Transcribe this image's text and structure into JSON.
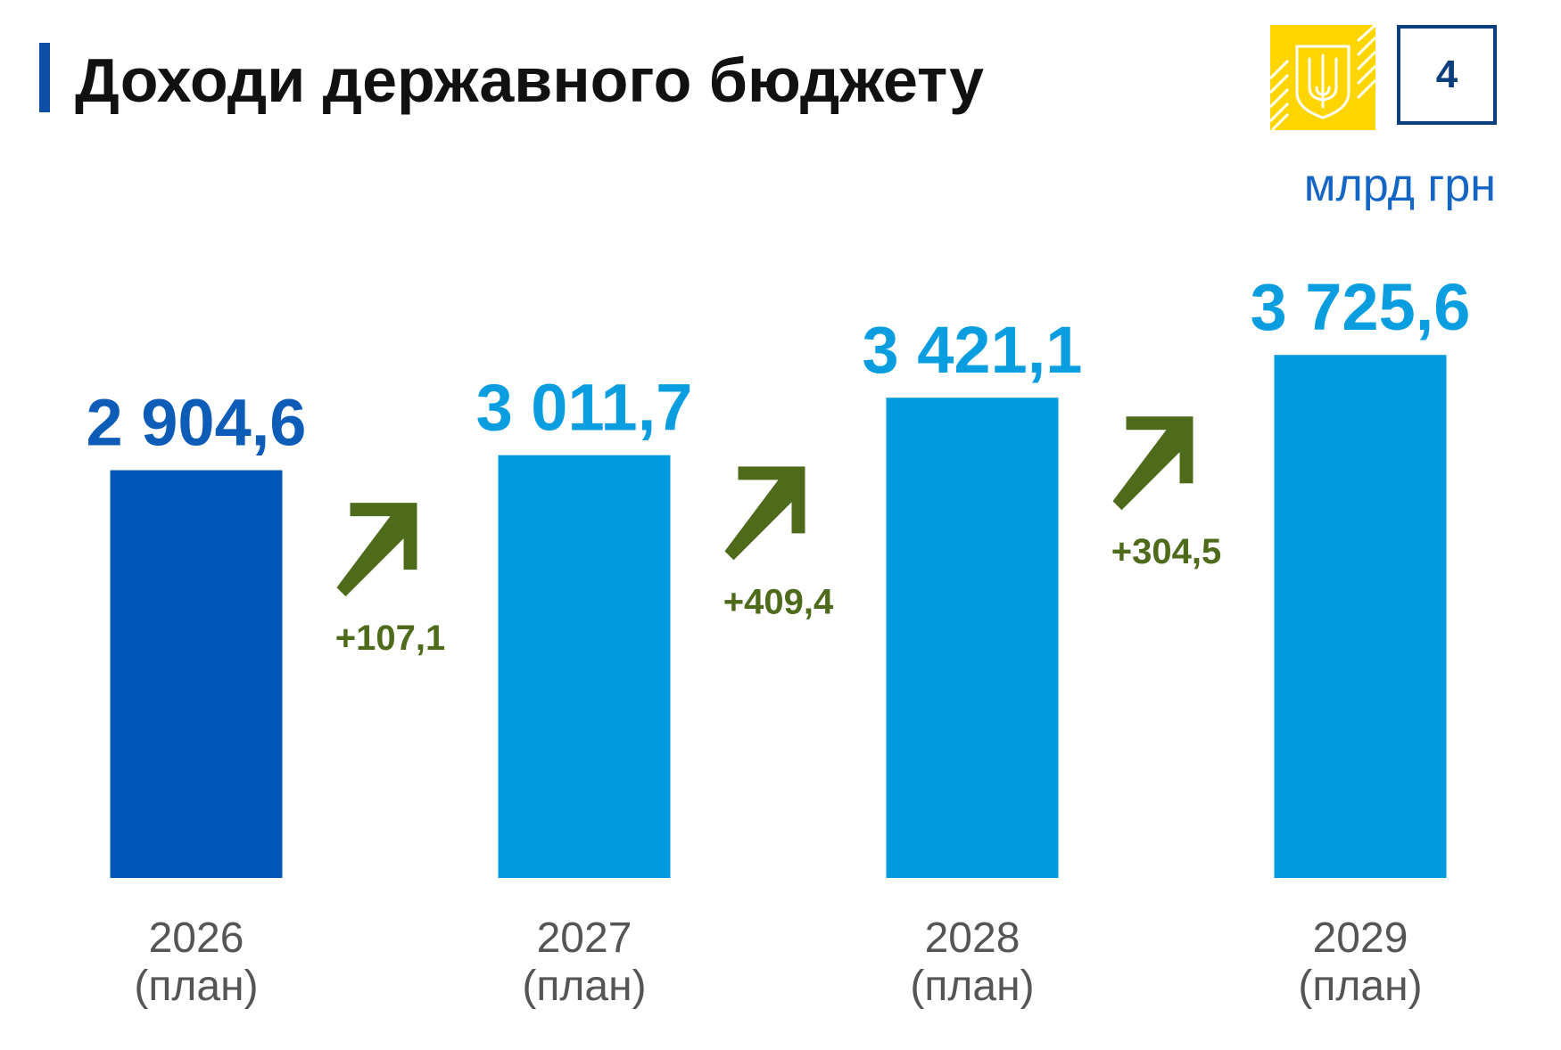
{
  "header": {
    "title": "Доходи державного бюджету",
    "page_number": "4",
    "unit": "млрд грн"
  },
  "emblem": {
    "icon": "ukraine-trident-emblem",
    "color": "#ffd500"
  },
  "colors": {
    "bar_first": "#0057b7",
    "bar_other": "#009ade",
    "value_first": "#0d5cb8",
    "value_other": "#0a9ee0",
    "delta": "#4e6b1c"
  },
  "chart_data": {
    "type": "bar",
    "categories": [
      {
        "year": "2026",
        "note": "(план)"
      },
      {
        "year": "2027",
        "note": "(план)"
      },
      {
        "year": "2028",
        "note": "(план)"
      },
      {
        "year": "2029",
        "note": "(план)"
      }
    ],
    "values": [
      2904.6,
      3011.7,
      3421.1,
      3725.6
    ],
    "value_labels": [
      "2 904,6",
      "3 011,7",
      "3 421,1",
      "3 725,6"
    ],
    "deltas": [
      "+107,1",
      "+409,4",
      "+304,5"
    ],
    "ylabel": "млрд грн",
    "grid": false,
    "legend": "none"
  }
}
